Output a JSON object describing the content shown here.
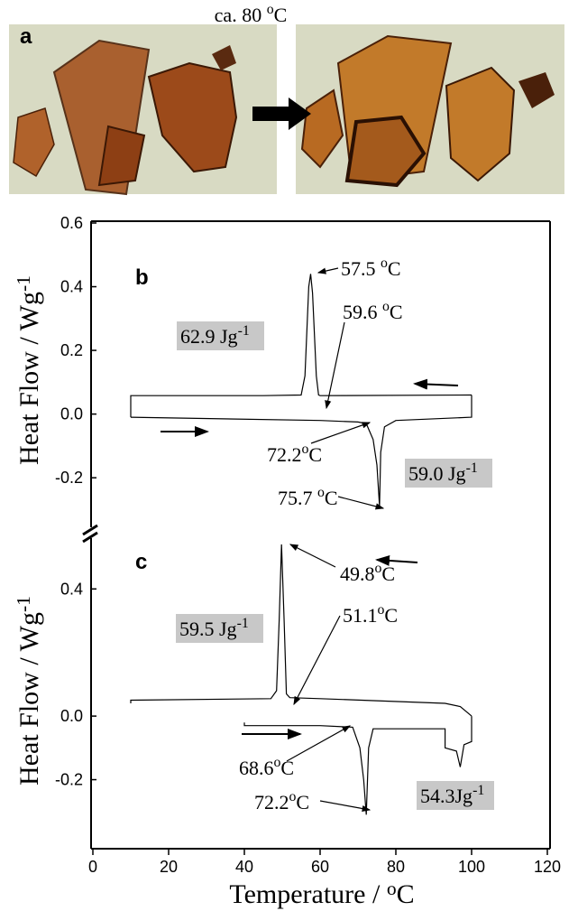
{
  "photo_label": "a",
  "photo_caption": {
    "label": "ca. 80 ",
    "sup": "o",
    "unit": "C"
  },
  "chart_data": [
    {
      "type": "line",
      "panel_label": "b",
      "ylabel": {
        "label": "Heat Flow / Wg",
        "sup": "-1"
      },
      "xlim": [
        0,
        120
      ],
      "ylim": [
        -0.33,
        0.6
      ],
      "yticks": [
        -0.2,
        {
          "value": 0,
          "label": "0.0"
        },
        0.2,
        0.4,
        0.6
      ],
      "series": [
        {
          "color": "#000000",
          "x": [
            100,
            60,
            59.6,
            59,
            58,
            57.5,
            57,
            56,
            55,
            45,
            10,
            10
          ],
          "values": [
            0.06,
            0.058,
            0.06,
            0.12,
            0.38,
            0.44,
            0.4,
            0.12,
            0.06,
            0.058,
            0.058,
            -0.01
          ]
        },
        {
          "color": "#000000",
          "x": [
            10,
            60,
            70,
            72.2,
            74,
            75,
            75.7,
            76,
            77,
            80,
            100,
            100
          ],
          "values": [
            -0.01,
            -0.02,
            -0.025,
            -0.03,
            -0.08,
            -0.16,
            -0.29,
            -0.12,
            -0.04,
            -0.02,
            -0.01,
            0.06
          ]
        }
      ],
      "annotations": [
        {
          "label": "57.5 ",
          "sup": "o",
          "unit": "C"
        },
        {
          "label": "59.6 ",
          "sup": "o",
          "unit": "C"
        },
        {
          "label": "62.9 Jg",
          "sup": "-1",
          "boxed": true
        },
        {
          "label": "72.2",
          "sup": "o",
          "unit": "C"
        },
        {
          "label": "75.7 ",
          "sup": "o",
          "unit": "C"
        },
        {
          "label": "59.0 Jg",
          "sup": "-1",
          "boxed": true
        }
      ]
    },
    {
      "type": "line",
      "panel_label": "c",
      "ylabel": {
        "label": "Heat Flow / Wg",
        "sup": "-1"
      },
      "xlabel": {
        "label": "Temperature / ",
        "sup": "o",
        "unit": "C"
      },
      "xlim": [
        0,
        120
      ],
      "xticks": [
        0,
        20,
        40,
        60,
        80,
        100,
        120
      ],
      "ylim": [
        -0.42,
        0.54
      ],
      "yticks": [
        -0.2,
        {
          "value": 0,
          "label": "0.0"
        },
        0.4
      ],
      "series": [
        {
          "color": "#000000",
          "x": [
            100,
            97,
            93,
            60,
            52,
            51.1,
            50.5,
            49.8,
            49.2,
            48.5,
            47,
            10,
            10
          ],
          "values": [
            0.0,
            0.03,
            0.04,
            0.055,
            0.058,
            0.07,
            0.3,
            0.54,
            0.3,
            0.08,
            0.055,
            0.05,
            0.04
          ]
        },
        {
          "color": "#000000",
          "x": [
            40,
            40,
            60,
            68.6,
            70.5,
            71.5,
            72.2,
            72.8,
            74,
            90,
            93,
            93,
            96,
            97,
            98,
            100,
            100
          ],
          "values": [
            -0.02,
            -0.03,
            -0.03,
            -0.035,
            -0.1,
            -0.2,
            -0.31,
            -0.1,
            -0.04,
            -0.04,
            -0.04,
            -0.1,
            -0.11,
            -0.16,
            -0.09,
            -0.08,
            0.0
          ]
        }
      ],
      "annotations": [
        {
          "label": "49.8",
          "sup": "o",
          "unit": "C"
        },
        {
          "label": "51.1",
          "sup": "o",
          "unit": "C"
        },
        {
          "label": "59.5 Jg",
          "sup": "-1",
          "boxed": true
        },
        {
          "label": "68.6",
          "sup": "o",
          "unit": "C"
        },
        {
          "label": "72.2",
          "sup": "o",
          "unit": "C"
        },
        {
          "label": "54.3Jg",
          "sup": "-1",
          "boxed": true
        }
      ]
    }
  ]
}
